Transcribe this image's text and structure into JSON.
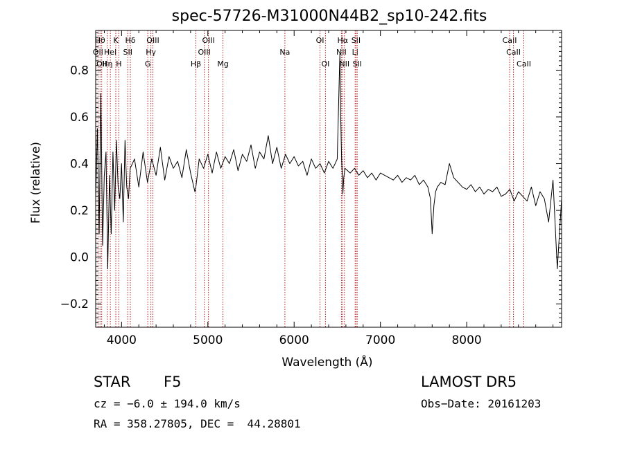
{
  "chart_data": {
    "type": "line",
    "title": "spec-57726-M31000N44B2_sp10-242.fits",
    "xlabel": "Wavelength (Å)",
    "ylabel": "Flux (relative)",
    "xlim": [
      3700,
      9100
    ],
    "ylim": [
      -0.3,
      0.97
    ],
    "xticks": [
      4000,
      5000,
      6000,
      7000,
      8000
    ],
    "yticks": [
      -0.2,
      0.0,
      0.2,
      0.4,
      0.6,
      0.8
    ],
    "xtick_labels": [
      "4000",
      "5000",
      "6000",
      "7000",
      "8000"
    ],
    "ytick_labels": [
      "−0.2",
      "0.0",
      "0.2",
      "0.4",
      "0.6",
      "0.8"
    ],
    "grid": false,
    "series": [
      {
        "color": "#000000",
        "x": [
          3700,
          3720,
          3740,
          3760,
          3780,
          3800,
          3820,
          3840,
          3860,
          3880,
          3900,
          3920,
          3940,
          3960,
          3980,
          4000,
          4020,
          4040,
          4060,
          4080,
          4100,
          4150,
          4200,
          4250,
          4300,
          4350,
          4400,
          4450,
          4500,
          4550,
          4600,
          4650,
          4700,
          4750,
          4800,
          4850,
          4861,
          4900,
          4950,
          5000,
          5050,
          5100,
          5150,
          5200,
          5250,
          5300,
          5350,
          5400,
          5450,
          5500,
          5550,
          5600,
          5650,
          5700,
          5750,
          5800,
          5850,
          5900,
          5950,
          6000,
          6050,
          6100,
          6150,
          6200,
          6250,
          6300,
          6350,
          6400,
          6450,
          6500,
          6530,
          6540,
          6550,
          6560,
          6565,
          6575,
          6590,
          6620,
          6650,
          6700,
          6750,
          6800,
          6850,
          6900,
          6950,
          7000,
          7050,
          7100,
          7150,
          7200,
          7250,
          7300,
          7350,
          7400,
          7450,
          7500,
          7550,
          7580,
          7600,
          7620,
          7640,
          7660,
          7700,
          7750,
          7800,
          7850,
          7900,
          7950,
          8000,
          8050,
          8100,
          8150,
          8200,
          8250,
          8300,
          8350,
          8400,
          8450,
          8500,
          8550,
          8600,
          8650,
          8700,
          8750,
          8800,
          8850,
          8900,
          8950,
          9000,
          9050,
          9100
        ],
        "y": [
          0.25,
          0.55,
          0.1,
          0.7,
          0.05,
          0.35,
          0.45,
          -0.05,
          0.35,
          0.1,
          0.45,
          0.2,
          0.5,
          0.3,
          0.25,
          0.4,
          0.15,
          0.5,
          0.3,
          0.25,
          0.38,
          0.42,
          0.3,
          0.45,
          0.32,
          0.42,
          0.35,
          0.47,
          0.33,
          0.43,
          0.38,
          0.41,
          0.34,
          0.46,
          0.36,
          0.28,
          0.3,
          0.42,
          0.38,
          0.44,
          0.36,
          0.45,
          0.38,
          0.43,
          0.4,
          0.46,
          0.37,
          0.44,
          0.41,
          0.48,
          0.38,
          0.45,
          0.42,
          0.52,
          0.4,
          0.47,
          0.38,
          0.44,
          0.4,
          0.43,
          0.39,
          0.41,
          0.35,
          0.42,
          0.38,
          0.4,
          0.36,
          0.41,
          0.38,
          0.42,
          0.87,
          0.6,
          0.42,
          0.33,
          0.27,
          0.34,
          0.38,
          0.37,
          0.36,
          0.38,
          0.35,
          0.37,
          0.34,
          0.36,
          0.33,
          0.36,
          0.35,
          0.34,
          0.33,
          0.35,
          0.32,
          0.34,
          0.33,
          0.35,
          0.31,
          0.33,
          0.3,
          0.25,
          0.1,
          0.22,
          0.28,
          0.3,
          0.32,
          0.31,
          0.4,
          0.34,
          0.32,
          0.3,
          0.29,
          0.31,
          0.28,
          0.3,
          0.27,
          0.29,
          0.28,
          0.3,
          0.26,
          0.27,
          0.29,
          0.24,
          0.28,
          0.26,
          0.24,
          0.3,
          0.22,
          0.28,
          0.25,
          0.15,
          0.33,
          -0.05,
          0.25
        ]
      }
    ],
    "line_markers": [
      {
        "wavelength": 3727,
        "label": "OII",
        "row": 2
      },
      {
        "wavelength": 3750,
        "label": "Hθ",
        "row": 1
      },
      {
        "wavelength": 3770,
        "label": "OII",
        "row": 3
      },
      {
        "wavelength": 3835,
        "label": "Hη",
        "row": 3
      },
      {
        "wavelength": 3870,
        "label": "HeI",
        "row": 2
      },
      {
        "wavelength": 3933,
        "label": "K",
        "row": 1
      },
      {
        "wavelength": 3968,
        "label": "H",
        "row": 3
      },
      {
        "wavelength": 4072,
        "label": "SII",
        "row": 2
      },
      {
        "wavelength": 4102,
        "label": "Hδ",
        "row": 1
      },
      {
        "wavelength": 4304,
        "label": "G",
        "row": 3
      },
      {
        "wavelength": 4340,
        "label": "Hγ",
        "row": 2
      },
      {
        "wavelength": 4363,
        "label": "OIII",
        "row": 1
      },
      {
        "wavelength": 4861,
        "label": "Hβ",
        "row": 3
      },
      {
        "wavelength": 4959,
        "label": "OIII",
        "row": 2
      },
      {
        "wavelength": 5007,
        "label": "OIII",
        "row": 1
      },
      {
        "wavelength": 5175,
        "label": "Mg",
        "row": 3
      },
      {
        "wavelength": 5893,
        "label": "Na",
        "row": 2
      },
      {
        "wavelength": 6300,
        "label": "OI",
        "row": 1
      },
      {
        "wavelength": 6363,
        "label": "OI",
        "row": 3
      },
      {
        "wavelength": 6548,
        "label": "NII",
        "row": 2
      },
      {
        "wavelength": 6563,
        "label": "Hα",
        "row": 1
      },
      {
        "wavelength": 6583,
        "label": "NII",
        "row": 3
      },
      {
        "wavelength": 6707,
        "label": "Li",
        "row": 2
      },
      {
        "wavelength": 6717,
        "label": "SII",
        "row": 1
      },
      {
        "wavelength": 6731,
        "label": "SII",
        "row": 3
      },
      {
        "wavelength": 8498,
        "label": "CaII",
        "row": 1
      },
      {
        "wavelength": 8542,
        "label": "CaII",
        "row": 2
      },
      {
        "wavelength": 8662,
        "label": "CaII",
        "row": 3
      }
    ]
  },
  "info": {
    "object_class": "STAR",
    "subclass": "F5",
    "survey": "LAMOST DR5",
    "redshift_line": "cz = −6.0 ± 194.0 km/s",
    "obs_date_line": "Obs−Date: 20161203",
    "coords_line": "RA = 358.27805, DEC =  44.28801"
  },
  "colors": {
    "spectrum": "#000000",
    "marker_lines": "#b22222",
    "axes": "#000000",
    "background": "#ffffff"
  }
}
